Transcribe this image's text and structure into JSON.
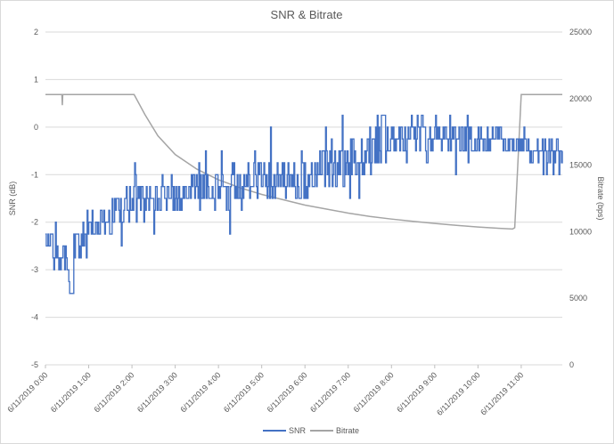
{
  "chart_data": {
    "type": "line",
    "title": "SNR & Bitrate",
    "xlabel": "",
    "ylabel": "SNR (dB)",
    "y2label": "Bitrate (bps)",
    "ylim": [
      -5,
      2
    ],
    "y2lim": [
      0,
      25000
    ],
    "yticks": [
      "2",
      "1",
      "0",
      "-1",
      "-2",
      "-3",
      "-4",
      "-5"
    ],
    "y2ticks": [
      "25000",
      "20000",
      "15000",
      "10000",
      "5000",
      "0"
    ],
    "x_tick_labels": [
      "6/11/2019 0:00",
      "6/11/2019 1:00",
      "6/11/2019 2:00",
      "6/11/2019 3:00",
      "6/11/2019 4:00",
      "6/11/2019 5:00",
      "6/11/2019 6:00",
      "6/11/2019 7:00",
      "6/11/2019 8:00",
      "6/11/2019 9:00",
      "6/11/2019 10:00",
      "6/11/2019 11:00"
    ],
    "x_range_hours": [
      0,
      11.95
    ],
    "grid": "horizontal major",
    "legend_position": "bottom",
    "colors": {
      "snr": "#4472C4",
      "bitrate": "#A5A5A5"
    },
    "series": [
      {
        "name": "SNR",
        "axis": "left",
        "color": "#4472C4",
        "note_visual": "noisy step series, quantized to 0.25 dB",
        "x_hours": [
          0.0,
          0.25,
          0.5,
          0.75,
          1.0,
          1.25,
          1.5,
          1.75,
          2.0,
          2.5,
          3.0,
          3.5,
          4.0,
          4.5,
          5.0,
          5.5,
          6.0,
          6.5,
          7.0,
          7.25,
          7.5,
          7.75,
          8.0,
          8.5,
          9.0,
          9.5,
          10.0,
          10.5,
          10.9,
          11.25,
          11.5,
          11.75,
          11.95
        ],
        "center": [
          -2.2,
          -2.5,
          -3.0,
          -2.5,
          -2.1,
          -2.0,
          -1.9,
          -1.7,
          -1.5,
          -1.5,
          -1.4,
          -1.3,
          -1.3,
          -1.2,
          -1.2,
          -1.1,
          -1.0,
          -0.8,
          -0.7,
          -0.6,
          -0.5,
          -0.4,
          -0.2,
          -0.2,
          -0.2,
          -0.2,
          -0.3,
          -0.3,
          -0.3,
          -0.5,
          -0.6,
          -0.6,
          -0.7
        ],
        "spread": [
          0.5,
          0.5,
          0.45,
          0.4,
          0.4,
          0.4,
          0.4,
          0.4,
          0.4,
          0.35,
          0.4,
          0.45,
          0.45,
          0.45,
          0.45,
          0.45,
          0.45,
          0.5,
          0.5,
          0.45,
          0.45,
          0.45,
          0.35,
          0.3,
          0.3,
          0.3,
          0.3,
          0.3,
          0.3,
          0.35,
          0.35,
          0.35,
          0.35
        ],
        "min_point": {
          "x_hours": 0.6,
          "value": -3.5
        },
        "max_point": {
          "x_hours": 7.8,
          "value": 0.25
        }
      },
      {
        "name": "Bitrate",
        "axis": "right",
        "color": "#A5A5A5",
        "x_hours": [
          0.0,
          0.38,
          0.39,
          0.4,
          2.05,
          2.3,
          2.6,
          3.0,
          3.5,
          4.0,
          4.5,
          5.0,
          5.5,
          6.0,
          6.5,
          7.0,
          7.5,
          8.0,
          8.5,
          9.0,
          9.5,
          10.0,
          10.5,
          10.8,
          10.85,
          11.0,
          11.95
        ],
        "values": [
          20300,
          20300,
          19500,
          20300,
          20300,
          18800,
          17200,
          15800,
          14700,
          13900,
          13300,
          12800,
          12400,
          12000,
          11700,
          11400,
          11150,
          10950,
          10780,
          10620,
          10480,
          10350,
          10250,
          10200,
          10300,
          20300,
          20300
        ]
      }
    ]
  }
}
